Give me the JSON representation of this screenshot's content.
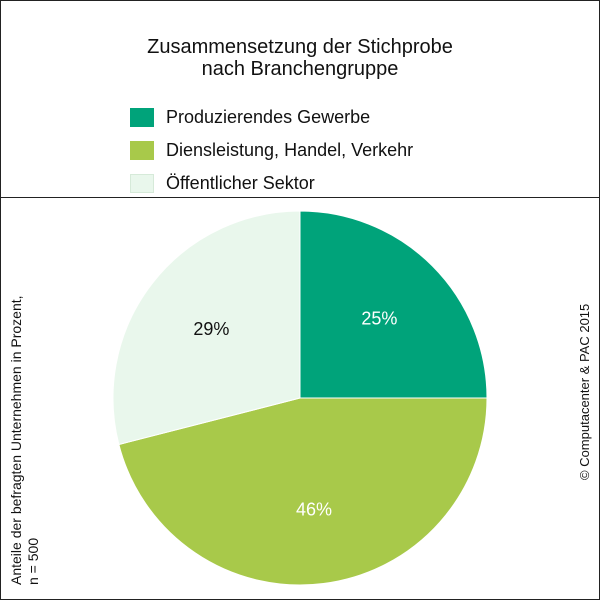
{
  "chart_data": {
    "type": "pie",
    "title": [
      "Zusammensetzung der Stichprobe",
      "nach Branchengruppe"
    ],
    "categories": [
      "Produzierendes Gewerbe",
      "Diensleistung, Handel, Verkehr",
      "Öffentlicher Sektor"
    ],
    "values": [
      25,
      46,
      29
    ],
    "value_labels": [
      "25%",
      "46%",
      "29%"
    ],
    "colors": [
      "#00a37a",
      "#a8c94a",
      "#e9f7ec"
    ],
    "label_colors": [
      "#ffffff",
      "#ffffff",
      "#111111"
    ],
    "legend_position": "top",
    "start_angle": "12 o'clock, clockwise"
  },
  "side_notes": {
    "left_line1": "Anteile der befragten Unternehmen in Prozent,",
    "left_line2": "n = 500",
    "right": "© Computacenter & PAC 2015"
  }
}
